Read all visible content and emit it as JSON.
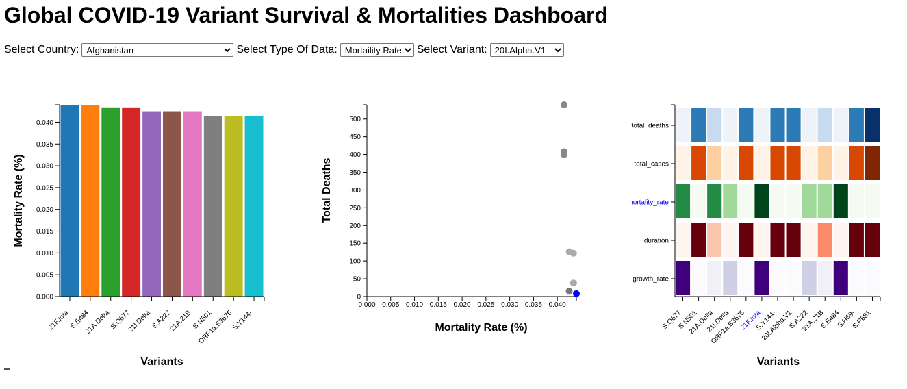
{
  "page": {
    "title": "Global COVID-19 Variant Survival & Mortalities Dashboard"
  },
  "controls": {
    "country_label": "Select Country:",
    "country_value": "Afghanistan",
    "type_label": "Select Type Of Data:",
    "type_value": "Mortaility Rate",
    "variant_label": "Select Variant:",
    "variant_value": "20I.Alpha.V1"
  },
  "chart_data": [
    {
      "type": "bar",
      "title": "",
      "xlabel": "Variants",
      "ylabel": "Mortality Rate (%)",
      "ylim": [
        0,
        0.044
      ],
      "yticks": [
        "0.000",
        "0.005",
        "0.010",
        "0.015",
        "0.020",
        "0.025",
        "0.030",
        "0.035",
        "0.040"
      ],
      "categories": [
        "21F.Iota",
        "S.E484",
        "21A.Delta",
        "S.Q677",
        "21I.Delta",
        "S.A222",
        "21A.21B",
        "S.N501",
        "ORF1a.S3675",
        "S.Y144-"
      ],
      "values": [
        0.044,
        0.044,
        0.0434,
        0.0434,
        0.0425,
        0.0425,
        0.0425,
        0.0414,
        0.0414,
        0.0414
      ],
      "colors": [
        "#1f77b4",
        "#ff7f0e",
        "#2ca02c",
        "#d62728",
        "#9467bd",
        "#8c564b",
        "#e377c2",
        "#7f7f7f",
        "#bcbd22",
        "#17becf"
      ],
      "grid": false
    },
    {
      "type": "scatter",
      "title": "",
      "xlabel": "Mortality Rate (%)",
      "ylabel": "Total Deaths",
      "xlim": [
        0,
        0.044
      ],
      "ylim": [
        0,
        540
      ],
      "xticks": [
        "0.000",
        "0.005",
        "0.010",
        "0.015",
        "0.020",
        "0.025",
        "0.030",
        "0.035",
        "0.040"
      ],
      "yticks": [
        "0",
        "50",
        "100",
        "150",
        "200",
        "250",
        "300",
        "350",
        "400",
        "450",
        "500"
      ],
      "points": [
        {
          "x": 0.0414,
          "y": 540,
          "color": "#888888"
        },
        {
          "x": 0.0414,
          "y": 408,
          "color": "#888888"
        },
        {
          "x": 0.0414,
          "y": 403,
          "color": "#888888"
        },
        {
          "x": 0.0414,
          "y": 400,
          "color": "#888888"
        },
        {
          "x": 0.0425,
          "y": 126,
          "color": "#aaaaaa"
        },
        {
          "x": 0.0434,
          "y": 122,
          "color": "#aaaaaa"
        },
        {
          "x": 0.0434,
          "y": 38,
          "color": "#aaaaaa"
        },
        {
          "x": 0.0425,
          "y": 15,
          "color": "#777777"
        },
        {
          "x": 0.044,
          "y": 8,
          "color": "#0000ff"
        }
      ],
      "grid": false
    },
    {
      "type": "heatmap",
      "title": "",
      "xlabel": "Variants",
      "ylabel": "",
      "rows": [
        "total_deaths",
        "total_cases",
        "mortality_rate",
        "duration",
        "growth_rate"
      ],
      "highlight_row": "mortality_rate",
      "highlight_column": "21F.Iota",
      "highlight_color": "#0000ff",
      "columns": [
        "S.Q677",
        "S.N501",
        "21A.Delta",
        "21I.Delta",
        "ORF1a.S3675",
        "21F.Iota",
        "S.Y144-",
        "20I.Alpha.V1",
        "S.A222",
        "21A.21B",
        "S.E484",
        "S.H69-",
        "S.P681"
      ],
      "palettes": {
        "total_deaths": [
          "#eef3fa",
          "#c6dbef",
          "#2c7bb6",
          "#08306b"
        ],
        "total_cases": [
          "#fff2e6",
          "#fdd0a2",
          "#d94801",
          "#7f2704"
        ],
        "mortality_rate": [
          "#f5fbf3",
          "#a1d99b",
          "#238b45",
          "#00441b"
        ],
        "duration": [
          "#fff5f0",
          "#fcc5ae",
          "#fc8a6a",
          "#67000d"
        ],
        "growth_rate": [
          "#fbfbfd",
          "#f2f0f7",
          "#cfcfe6",
          "#3f007d"
        ]
      },
      "levels": {
        "total_deaths": [
          0,
          2,
          1,
          0,
          2,
          0,
          2,
          2,
          0,
          1,
          0,
          2,
          3
        ],
        "total_cases": [
          0,
          2,
          1,
          0,
          2,
          0,
          2,
          2,
          0,
          1,
          0,
          2,
          3
        ],
        "mortality_rate": [
          2,
          0,
          2,
          1,
          0,
          3,
          0,
          0,
          1,
          1,
          3,
          0,
          0
        ],
        "duration": [
          0,
          3,
          1,
          0,
          3,
          0,
          3,
          3,
          0,
          2,
          0,
          3,
          3
        ],
        "growth_rate": [
          3,
          0,
          1,
          2,
          0,
          3,
          0,
          0,
          2,
          1,
          3,
          0,
          0
        ]
      }
    }
  ]
}
